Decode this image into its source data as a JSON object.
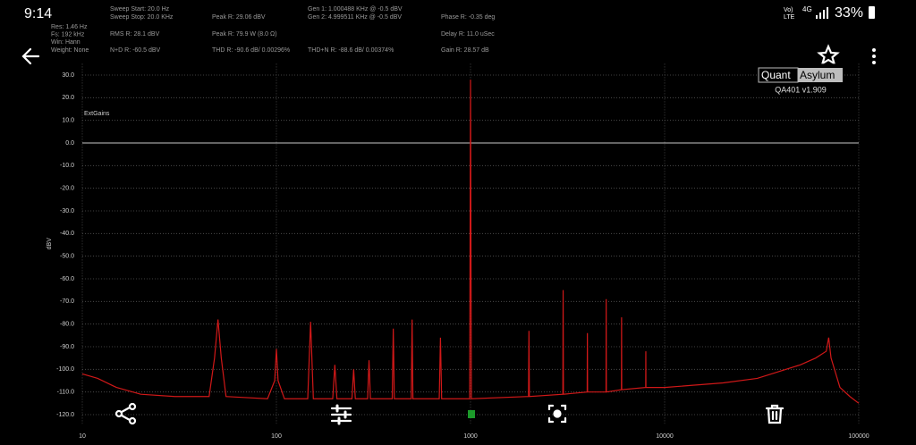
{
  "status_bar": {
    "time": "9:14",
    "volte": "Vo)",
    "lte": "LTE",
    "network": "4G",
    "battery": "33%"
  },
  "header": {
    "col1": [
      "Res: 1.46 Hz",
      "Fs: 192 kHz",
      "Win: Hann",
      "Weight: None"
    ],
    "col2": [
      "Sweep Start: 20.0 Hz",
      "Sweep Stop: 20.0 KHz",
      "RMS R: 28.1 dBV",
      "N+D R: -60.5 dBV"
    ],
    "col3": [
      "Peak R: 29.06 dBV",
      "Peak R: 79.9 W (8.0 Ω)",
      "THD R: -90.6 dB/ 0.00296%"
    ],
    "col4": [
      "Gen 1: 1.000488 KHz @ -0.5 dBV",
      "Gen 2: 4.999511 KHz @ -0.5 dBV",
      "THD+N R: -88.6 dB/ 0.00374%"
    ],
    "col5": [
      "Phase R: -0.35 deg",
      "Delay R: 11.0 uSec",
      "Gain R: 28.57 dB"
    ]
  },
  "brand": {
    "left": "Quant",
    "right": "Asylum",
    "version": "QA401 v1.909"
  },
  "chart_data": {
    "type": "line",
    "y_label": "dBV",
    "annotation": "ExtGains",
    "log_x": true,
    "grid": true,
    "color": "#d01818",
    "reference_line": {
      "value": 0,
      "color": "#c8c8c8"
    },
    "xlim": [
      10,
      100000
    ],
    "xticks": [
      10,
      100,
      1000,
      10000,
      100000
    ],
    "ylim": [
      -124,
      35
    ],
    "yticks": [
      {
        "value": 30,
        "label": "30.0"
      },
      {
        "value": 20,
        "label": "20.0"
      },
      {
        "value": 10,
        "label": "10.0"
      },
      {
        "value": 0,
        "label": "0.0"
      },
      {
        "value": -10,
        "label": "-10.0"
      },
      {
        "value": -20,
        "label": "-20.0"
      },
      {
        "value": -30,
        "label": "-30.0"
      },
      {
        "value": -40,
        "label": "-40.0"
      },
      {
        "value": -50,
        "label": "-50.0"
      },
      {
        "value": -60,
        "label": "-60.0"
      },
      {
        "value": -70,
        "label": "-70.0"
      },
      {
        "value": -80,
        "label": "-80.0"
      },
      {
        "value": -90,
        "label": "-90.0"
      },
      {
        "value": -100,
        "label": "-100.0"
      },
      {
        "value": -110,
        "label": "-110.0"
      },
      {
        "value": -120,
        "label": "-120.0"
      }
    ],
    "x": [
      10,
      12,
      15,
      20,
      30,
      45,
      48,
      50,
      52,
      55,
      90,
      98,
      100,
      102,
      110,
      145,
      150,
      155,
      195,
      200,
      205,
      245,
      250,
      255,
      295,
      300,
      305,
      395,
      400,
      405,
      495,
      500,
      505,
      690,
      700,
      710,
      990,
      1000,
      1010,
      1990,
      2000,
      2010,
      2990,
      3000,
      3010,
      3990,
      4000,
      4010,
      4990,
      5000,
      5010,
      5990,
      6000,
      6010,
      7990,
      8000,
      8010,
      10000,
      20000,
      30000,
      50000,
      60000,
      68000,
      70000,
      72000,
      80000,
      90000,
      100000
    ],
    "values": [
      -102,
      -104,
      -108,
      -111,
      -112,
      -112,
      -95,
      -78,
      -95,
      -112,
      -113,
      -105,
      -91,
      -105,
      -113,
      -113,
      -79,
      -113,
      -113,
      -98,
      -113,
      -113,
      -100,
      -113,
      -113,
      -96,
      -113,
      -113,
      -82,
      -113,
      -113,
      -78,
      -113,
      -113,
      -86,
      -113,
      -113,
      28,
      -113,
      -112,
      -83,
      -112,
      -111,
      -65,
      -111,
      -110,
      -84,
      -110,
      -110,
      -69,
      -110,
      -109,
      -77,
      -109,
      -108,
      -92,
      -108,
      -108,
      -106,
      -104,
      -98,
      -95,
      -92,
      -86,
      -95,
      -108,
      -112,
      -115
    ]
  }
}
